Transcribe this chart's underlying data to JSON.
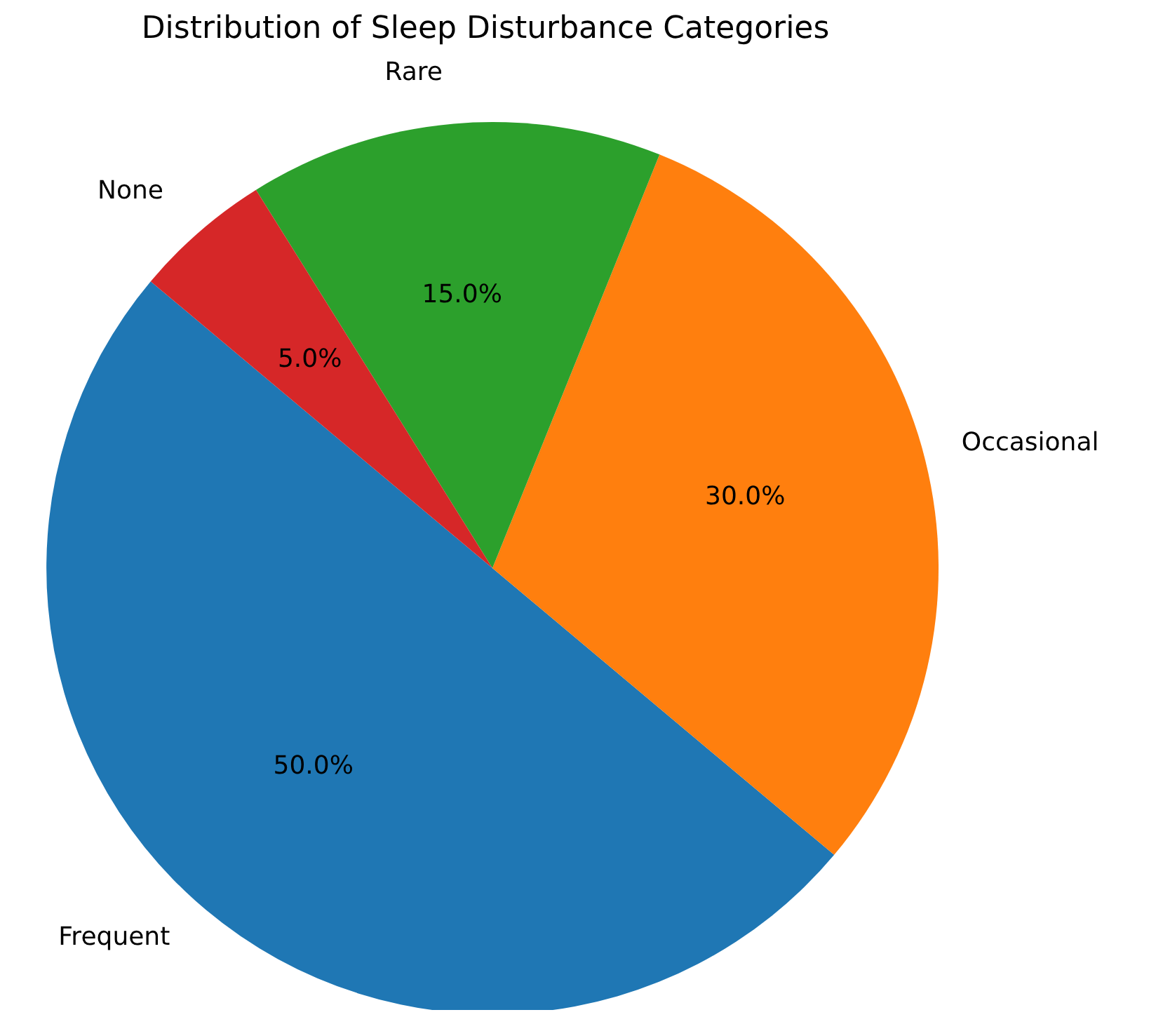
{
  "chart_data": {
    "type": "pie",
    "title": "Distribution of Sleep Disturbance Categories",
    "categories": [
      "Frequent",
      "Occasional",
      "Rare",
      "None"
    ],
    "values": [
      50,
      30,
      15,
      5
    ],
    "value_labels": [
      "50.0%",
      "30.0%",
      "15.0%",
      "5.0%"
    ],
    "colors": [
      "#1f77b4",
      "#ff7f0e",
      "#2ca02c",
      "#d62728"
    ]
  }
}
